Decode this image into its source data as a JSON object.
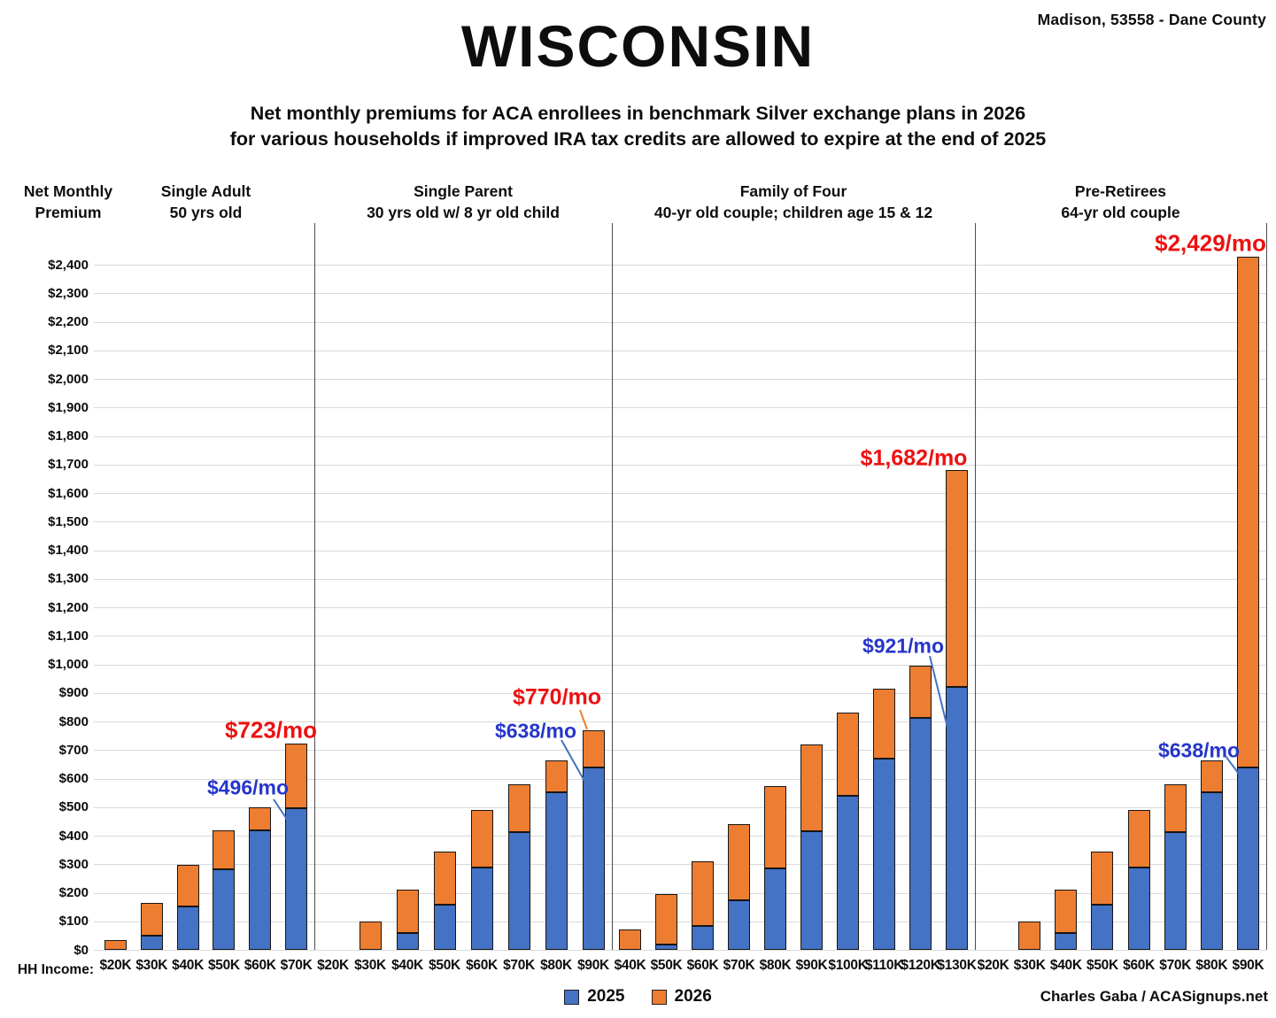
{
  "location_label": "Madison, 53558 - Dane County",
  "title": "WISCONSIN",
  "subtitle_line1": "Net monthly premiums for ACA enrollees in benchmark Silver exchange plans in 2026",
  "subtitle_line2": "for various households if improved IRA tax credits are allowed to expire at the end of 2025",
  "y_axis_title_line1": "Net Monthly",
  "y_axis_title_line2": "Premium",
  "x_axis_title": "HH Income:",
  "credit": "Charles Gaba / ACASignups.net",
  "legend": [
    {
      "label": "2025",
      "color": "#4472C4"
    },
    {
      "label": "2026",
      "color": "#ED7D31"
    }
  ],
  "chart_data": {
    "type": "bar",
    "stacked": true,
    "title": "WISCONSIN",
    "ylabel": "Net Monthly Premium",
    "xlabel": "HH Income",
    "ylim": [
      0,
      2400
    ],
    "y_tick_step": 100,
    "grid": true,
    "legend_position": "bottom",
    "series_names": [
      "2025",
      "2026"
    ],
    "colors": {
      "series_2025": "#4472C4",
      "series_2026": "#ED7D31",
      "label_2025": "#2636C9",
      "label_2026": "#ED1111"
    },
    "groups": [
      {
        "title_line1": "Single Adult",
        "title_line2": "50 yrs old",
        "categories": [
          "$20K",
          "$30K",
          "$40K",
          "$50K",
          "$60K",
          "$70K"
        ],
        "series": [
          {
            "name": "2025",
            "values": [
              0,
              50,
              152,
              281,
              418,
              496
            ]
          },
          {
            "name": "2026",
            "values": [
              35,
              165,
              297,
              419,
              498,
              723
            ]
          }
        ],
        "annotations": [
          {
            "text": "$496/mo",
            "series": "2025",
            "category": "$70K"
          },
          {
            "text": "$723/mo",
            "series": "2026",
            "category": "$70K"
          }
        ]
      },
      {
        "title_line1": "Single Parent",
        "title_line2": "30 yrs old w/ 8 yr old child",
        "categories": [
          "$20K",
          "$30K",
          "$40K",
          "$50K",
          "$60K",
          "$70K",
          "$80K",
          "$90K"
        ],
        "series": [
          {
            "name": "2025",
            "values": [
              0,
              0,
              60,
              158,
              288,
              413,
              553,
              638
            ]
          },
          {
            "name": "2026",
            "values": [
              0,
              100,
              212,
              345,
              490,
              580,
              663,
              770
            ]
          }
        ],
        "annotations": [
          {
            "text": "$638/mo",
            "series": "2025",
            "category": "$90K"
          },
          {
            "text": "$770/mo",
            "series": "2026",
            "category": "$90K"
          }
        ]
      },
      {
        "title_line1": "Family of Four",
        "title_line2": "40-yr old couple; children age 15 & 12",
        "categories": [
          "$40K",
          "$50K",
          "$60K",
          "$70K",
          "$80K",
          "$90K",
          "$100K",
          "$110K",
          "$120K",
          "$130K"
        ],
        "series": [
          {
            "name": "2025",
            "values": [
              0,
              18,
              83,
              173,
              285,
              417,
              540,
              670,
              812,
              921
            ]
          },
          {
            "name": "2026",
            "values": [
              70,
              195,
              310,
              440,
              573,
              720,
              830,
              915,
              995,
              1682
            ]
          }
        ],
        "annotations": [
          {
            "text": "$921/mo",
            "series": "2025",
            "category": "$130K"
          },
          {
            "text": "$1,682/mo",
            "series": "2026",
            "category": "$130K"
          }
        ]
      },
      {
        "title_line1": "Pre-Retirees",
        "title_line2": "64-yr old couple",
        "categories": [
          "$20K",
          "$30K",
          "$40K",
          "$50K",
          "$60K",
          "$70K",
          "$80K",
          "$90K"
        ],
        "series": [
          {
            "name": "2025",
            "values": [
              0,
              0,
              60,
              158,
              288,
              413,
              553,
              638
            ]
          },
          {
            "name": "2026",
            "values": [
              0,
              100,
              212,
              345,
              490,
              580,
              663,
              2429
            ]
          }
        ],
        "annotations": [
          {
            "text": "$638/mo",
            "series": "2025",
            "category": "$90K"
          },
          {
            "text": "$2,429/mo",
            "series": "2026",
            "category": "$90K"
          }
        ]
      }
    ]
  }
}
